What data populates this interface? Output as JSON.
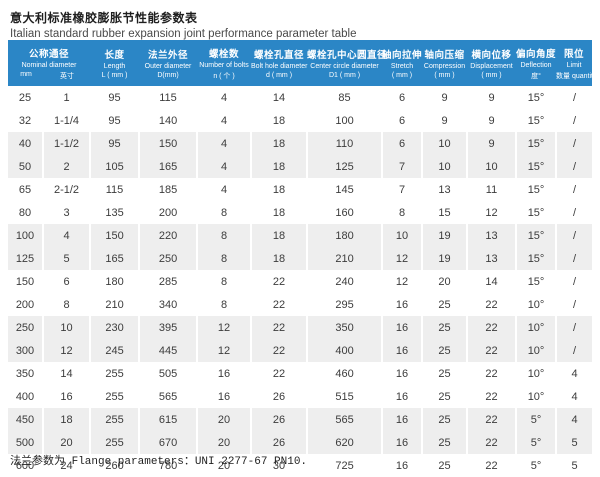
{
  "header": {
    "title_zh": "意大利标准橡胶膨胀节性能参数表",
    "title_en": "Italian standard rubber expansion joint performance parameter table"
  },
  "colors": {
    "header_bg": "#2b86c6",
    "stripe": "#eeeeee",
    "body_text": "#3c3c3c"
  },
  "table": {
    "columns": [
      {
        "zh": "公称通径",
        "en": "Nominal diameter",
        "sub_mm": "mm",
        "sub_inch": "英寸"
      },
      {
        "zh": "长度",
        "en": "Length",
        "unit": "L ( mm )"
      },
      {
        "zh": "法兰外径",
        "en": "Outer diameter",
        "unit": "D(mm)"
      },
      {
        "zh": "螺栓数",
        "en": "Number of bolts",
        "unit": "n ( 个 )"
      },
      {
        "zh": "螺栓孔直径",
        "en": "Bolt hole diameter",
        "unit": "d ( mm )"
      },
      {
        "zh": "螺栓孔中心圆直径",
        "en": "Center circle diameter",
        "unit": "D1 ( mm )"
      },
      {
        "zh": "轴向拉伸",
        "en": "Stretch",
        "unit": "( mm )"
      },
      {
        "zh": "轴向压缩",
        "en": "Compression",
        "unit": "( mm )"
      },
      {
        "zh": "横向位移",
        "en": "Displacement",
        "unit": "( mm )"
      },
      {
        "zh": "偏向角度",
        "en": "Deflection",
        "unit": "度°"
      },
      {
        "zh": "限位",
        "en": "Limit",
        "unit": "数量 quantity"
      }
    ],
    "rows": [
      [
        "25",
        "1",
        "95",
        "115",
        "4",
        "14",
        "85",
        "6",
        "9",
        "9",
        "15°",
        "/"
      ],
      [
        "32",
        "1-1/4",
        "95",
        "140",
        "4",
        "18",
        "100",
        "6",
        "9",
        "9",
        "15°",
        "/"
      ],
      [
        "40",
        "1-1/2",
        "95",
        "150",
        "4",
        "18",
        "110",
        "6",
        "10",
        "9",
        "15°",
        "/"
      ],
      [
        "50",
        "2",
        "105",
        "165",
        "4",
        "18",
        "125",
        "7",
        "10",
        "10",
        "15°",
        "/"
      ],
      [
        "65",
        "2-1/2",
        "115",
        "185",
        "4",
        "18",
        "145",
        "7",
        "13",
        "11",
        "15°",
        "/"
      ],
      [
        "80",
        "3",
        "135",
        "200",
        "8",
        "18",
        "160",
        "8",
        "15",
        "12",
        "15°",
        "/"
      ],
      [
        "100",
        "4",
        "150",
        "220",
        "8",
        "18",
        "180",
        "10",
        "19",
        "13",
        "15°",
        "/"
      ],
      [
        "125",
        "5",
        "165",
        "250",
        "8",
        "18",
        "210",
        "12",
        "19",
        "13",
        "15°",
        "/"
      ],
      [
        "150",
        "6",
        "180",
        "285",
        "8",
        "22",
        "240",
        "12",
        "20",
        "14",
        "15°",
        "/"
      ],
      [
        "200",
        "8",
        "210",
        "340",
        "8",
        "22",
        "295",
        "16",
        "25",
        "22",
        "10°",
        "/"
      ],
      [
        "250",
        "10",
        "230",
        "395",
        "12",
        "22",
        "350",
        "16",
        "25",
        "22",
        "10°",
        "/"
      ],
      [
        "300",
        "12",
        "245",
        "445",
        "12",
        "22",
        "400",
        "16",
        "25",
        "22",
        "10°",
        "/"
      ],
      [
        "350",
        "14",
        "255",
        "505",
        "16",
        "22",
        "460",
        "16",
        "25",
        "22",
        "10°",
        "4"
      ],
      [
        "400",
        "16",
        "255",
        "565",
        "16",
        "26",
        "515",
        "16",
        "25",
        "22",
        "10°",
        "4"
      ],
      [
        "450",
        "18",
        "255",
        "615",
        "20",
        "26",
        "565",
        "16",
        "25",
        "22",
        "5°",
        "4"
      ],
      [
        "500",
        "20",
        "255",
        "670",
        "20",
        "26",
        "620",
        "16",
        "25",
        "22",
        "5°",
        "5"
      ],
      [
        "600",
        "24",
        "260",
        "780",
        "20",
        "30",
        "725",
        "16",
        "25",
        "22",
        "5°",
        "5"
      ]
    ]
  },
  "footer": {
    "note": "法兰参数为 Flange parameters：UNI 2277-67 PN10."
  }
}
